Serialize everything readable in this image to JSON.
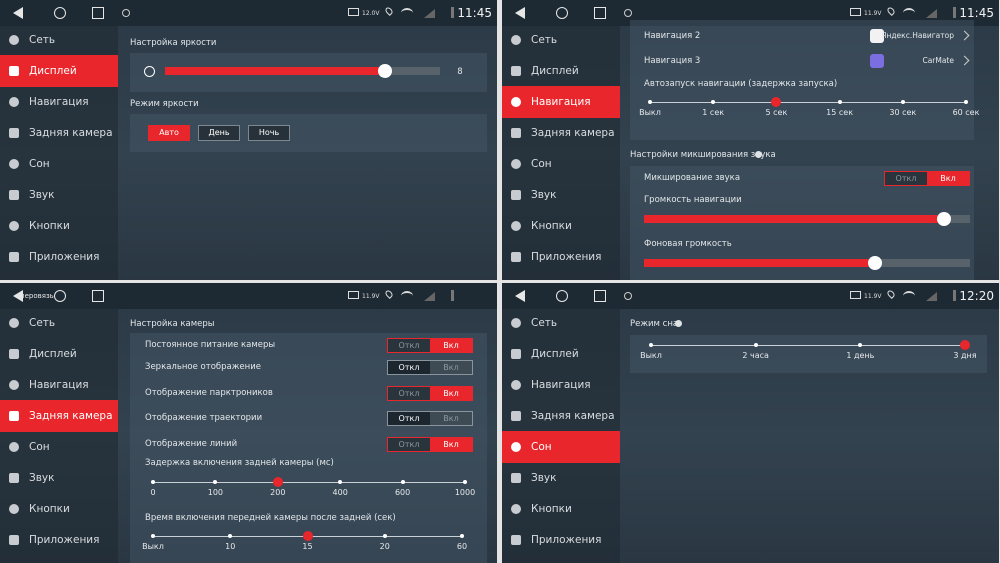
{
  "panels": [
    {
      "status": {
        "voltage": "12.0V",
        "time": "11:45"
      },
      "menu": [
        "Сеть",
        "Дисплей",
        "Навигация",
        "Задняя камера",
        "Сон",
        "Звук",
        "Кнопки",
        "Приложения"
      ],
      "active": 1,
      "brightness": {
        "title": "Настройка яркости",
        "value": 8,
        "range": [
          0,
          10
        ]
      },
      "mode": {
        "title": "Режим яркости",
        "options": [
          "Авто",
          "День",
          "Ночь"
        ],
        "selected": 0
      }
    },
    {
      "status": {
        "voltage": "11.9V",
        "time": "11:45"
      },
      "menu": [
        "Сеть",
        "Дисплей",
        "Навигация",
        "Задняя камера",
        "Сон",
        "Звук",
        "Кнопки",
        "Приложения"
      ],
      "active": 2,
      "apps": [
        {
          "label": "Навигация 2",
          "app": "Яндекс.Навигатор"
        },
        {
          "label": "Навигация 3",
          "app": "CarMate"
        }
      ],
      "autostart": {
        "title": "Автозапуск навигации (задержка запуска)",
        "stops": [
          "Выкл",
          "1 сек",
          "5 сек",
          "15 сек",
          "30 сек",
          "60 сек"
        ],
        "selected": 2
      },
      "mixing": {
        "title": "Настройки микширования звука",
        "toggle": {
          "label": "Микширование звука",
          "options": [
            "Откл",
            "Вкл"
          ],
          "selected": 1
        },
        "sliders": [
          {
            "label": "Громкость навигации",
            "level": 92,
            "range": [
              0,
              100
            ]
          },
          {
            "label": "Фоновая громкость",
            "level": 71,
            "range": [
              0,
              100
            ]
          }
        ]
      }
    },
    {
      "status": {
        "voltage": "11.9V",
        "notice": "перовязь"
      },
      "menu": [
        "Сеть",
        "Дисплей",
        "Навигация",
        "Задняя камера",
        "Сон",
        "Звук",
        "Кнопки",
        "Приложения"
      ],
      "active": 3,
      "camera": {
        "title": "Настройка камеры",
        "toggles": [
          {
            "label": "Постоянное питание камеры",
            "options": [
              "Откл",
              "Вкл"
            ],
            "selected": 1
          },
          {
            "label": "Зеркальное отображение",
            "options": [
              "Откл",
              "Вкл"
            ],
            "selected": 0
          },
          {
            "label": "Отображение парктроников",
            "options": [
              "Откл",
              "Вкл"
            ],
            "selected": 1
          },
          {
            "label": "Отображение траектории",
            "options": [
              "Откл",
              "Вкл"
            ],
            "selected": 0
          },
          {
            "label": "Отображение линий",
            "options": [
              "Откл",
              "Вкл"
            ],
            "selected": 1
          }
        ],
        "scales": [
          {
            "title": "Задержка включения задней камеры (мс)",
            "stops": [
              "0",
              "100",
              "200",
              "400",
              "600",
              "1000"
            ],
            "selected": 2
          },
          {
            "title": "Время включения передней камеры после задней (сек)",
            "stops": [
              "Выкл",
              "10",
              "15",
              "20",
              "60"
            ],
            "selected": 2
          }
        ]
      }
    },
    {
      "status": {
        "voltage": "11.9V",
        "time": "12:20"
      },
      "menu": [
        "Сеть",
        "Дисплей",
        "Навигация",
        "Задняя камера",
        "Сон",
        "Звук",
        "Кнопки",
        "Приложения"
      ],
      "active": 4,
      "sleep": {
        "title": "Режим сна",
        "stops": [
          "Выкл",
          "2 часа",
          "1 день",
          "3 дня"
        ],
        "selected": 3
      }
    }
  ]
}
